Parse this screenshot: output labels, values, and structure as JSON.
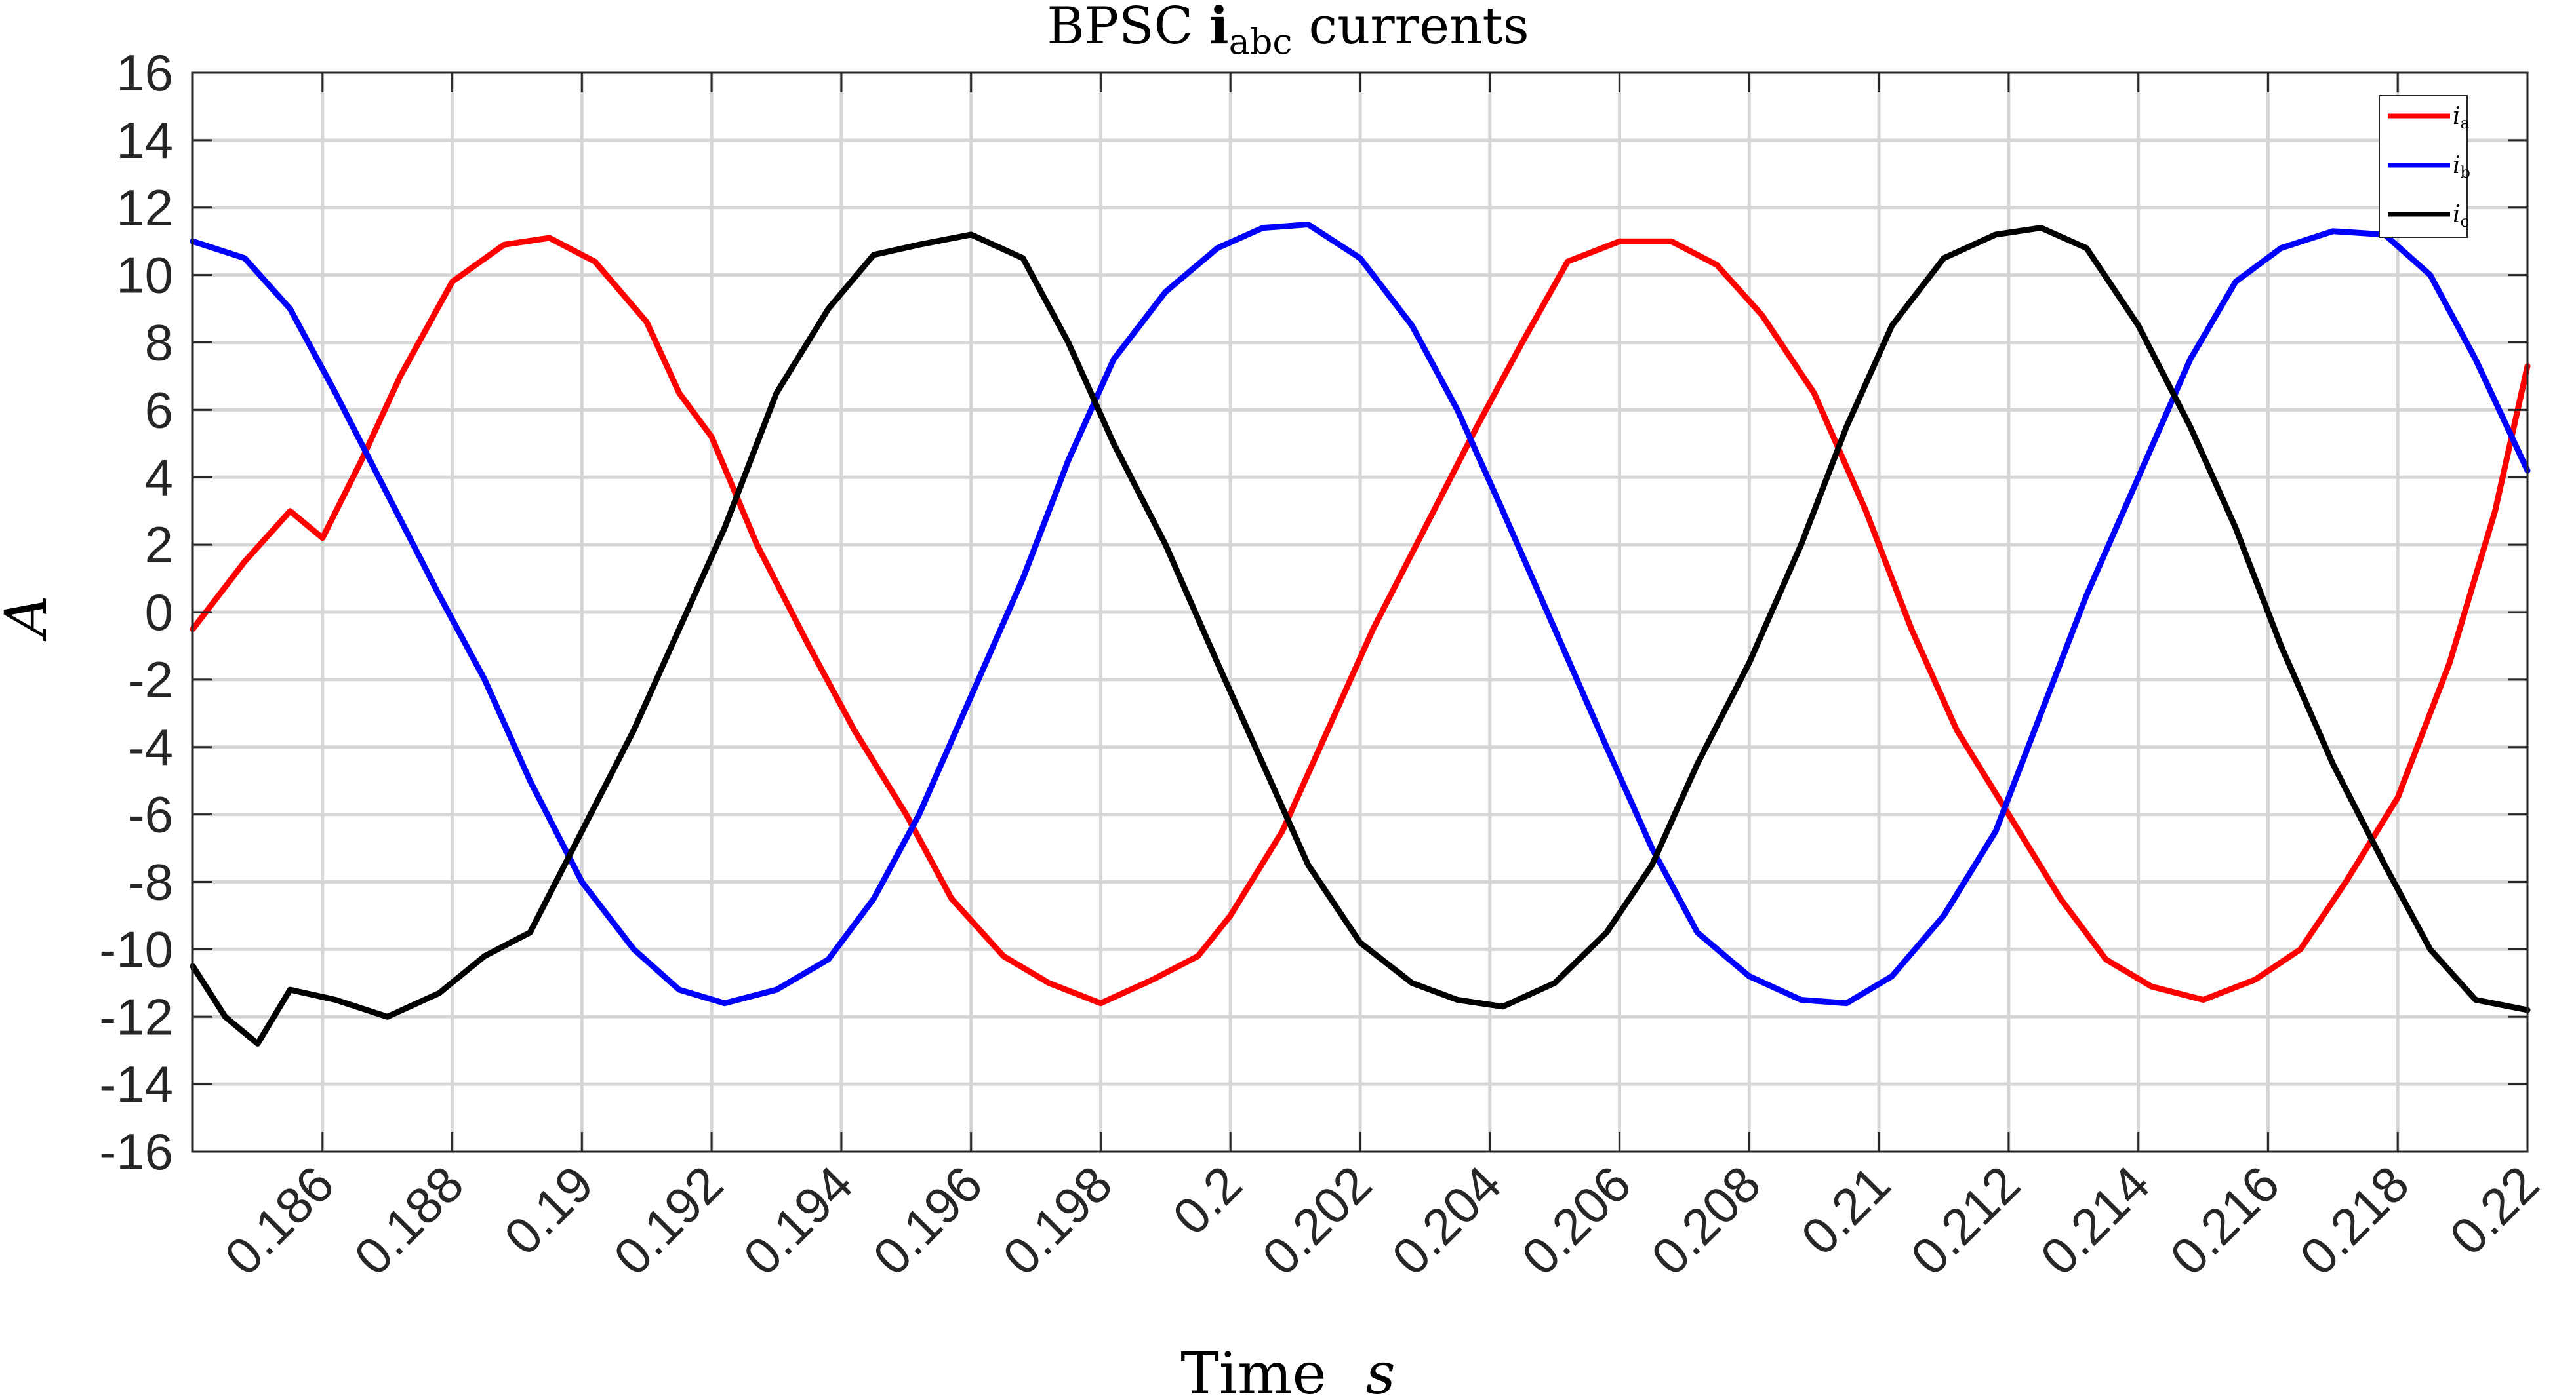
{
  "chart_data": {
    "type": "line",
    "title": "BPSC i_abc currents",
    "title_parts": {
      "prefix": "BPSC ",
      "bold": "i",
      "subscript": "abc",
      "suffix": " currents"
    },
    "xlabel": "Time  s",
    "xlabel_parts": {
      "text": "Time",
      "unit": "s"
    },
    "ylabel": "A",
    "xlim": [
      0.184,
      0.22
    ],
    "ylim": [
      -16,
      16
    ],
    "x_ticks": [
      0.186,
      0.188,
      0.19,
      0.192,
      0.194,
      0.196,
      0.198,
      0.2,
      0.202,
      0.204,
      0.206,
      0.208,
      0.21,
      0.212,
      0.214,
      0.216,
      0.218,
      0.22
    ],
    "x_tick_labels": [
      "0.186",
      "0.188",
      "0.19",
      "0.192",
      "0.194",
      "0.196",
      "0.198",
      "0.2",
      "0.202",
      "0.204",
      "0.206",
      "0.208",
      "0.21",
      "0.212",
      "0.214",
      "0.216",
      "0.218",
      "0.22"
    ],
    "y_ticks": [
      16,
      14,
      12,
      10,
      8,
      6,
      4,
      2,
      0,
      -2,
      -4,
      -6,
      -8,
      -10,
      -12,
      -14,
      -16
    ],
    "y_tick_labels": [
      "16",
      "14",
      "12",
      "10",
      "8",
      "6",
      "4",
      "2",
      "0",
      "-2",
      "-4",
      "-6",
      "-8",
      "-10",
      "-12",
      "-14",
      "-16"
    ],
    "grid": true,
    "legend_position": "top-right",
    "series": [
      {
        "name": "i_a",
        "legend_main": "i",
        "legend_sub": "a",
        "color": "#ff0000",
        "x": [
          0.184,
          0.1848,
          0.1855,
          0.186,
          0.1866,
          0.1872,
          0.188,
          0.1888,
          0.1895,
          0.1902,
          0.191,
          0.1915,
          0.192,
          0.1927,
          0.1935,
          0.1942,
          0.195,
          0.1957,
          0.1965,
          0.1972,
          0.198,
          0.1988,
          0.1995,
          0.2,
          0.2008,
          0.2015,
          0.2022,
          0.203,
          0.2038,
          0.2045,
          0.2052,
          0.206,
          0.2068,
          0.2075,
          0.2082,
          0.209,
          0.2098,
          0.2105,
          0.2112,
          0.212,
          0.2128,
          0.2135,
          0.2142,
          0.215,
          0.2158,
          0.2165,
          0.2172,
          0.218,
          0.2188,
          0.2195,
          0.22
        ],
        "y": [
          -0.5,
          1.5,
          3.0,
          2.2,
          4.5,
          7.0,
          9.8,
          10.9,
          11.1,
          10.4,
          8.6,
          6.5,
          5.2,
          2.0,
          -1.0,
          -3.5,
          -6.0,
          -8.5,
          -10.2,
          -11.0,
          -11.6,
          -10.9,
          -10.2,
          -9.0,
          -6.5,
          -3.5,
          -0.5,
          2.5,
          5.5,
          8.0,
          10.4,
          11.0,
          11.0,
          10.3,
          8.8,
          6.5,
          3.0,
          -0.5,
          -3.5,
          -6.0,
          -8.5,
          -10.3,
          -11.1,
          -11.5,
          -10.9,
          -10.0,
          -8.0,
          -5.5,
          -1.5,
          3.0,
          7.3
        ]
      },
      {
        "name": "i_b",
        "legend_main": "i",
        "legend_sub": "b",
        "color": "#0000ff",
        "x": [
          0.184,
          0.1848,
          0.1855,
          0.1862,
          0.187,
          0.1878,
          0.1885,
          0.1892,
          0.19,
          0.1908,
          0.1915,
          0.1922,
          0.193,
          0.1938,
          0.1945,
          0.1952,
          0.196,
          0.1968,
          0.1975,
          0.1982,
          0.199,
          0.1998,
          0.2005,
          0.2012,
          0.202,
          0.2028,
          0.2035,
          0.2042,
          0.205,
          0.2058,
          0.2065,
          0.2072,
          0.208,
          0.2088,
          0.2095,
          0.2102,
          0.211,
          0.2118,
          0.2125,
          0.2132,
          0.214,
          0.2148,
          0.2155,
          0.2162,
          0.217,
          0.2178,
          0.2185,
          0.2192,
          0.22
        ],
        "y": [
          11.0,
          10.5,
          9.0,
          6.5,
          3.5,
          0.5,
          -2.0,
          -5.0,
          -8.0,
          -10.0,
          -11.2,
          -11.6,
          -11.2,
          -10.3,
          -8.5,
          -6.0,
          -2.5,
          1.0,
          4.5,
          7.5,
          9.5,
          10.8,
          11.4,
          11.5,
          10.5,
          8.5,
          6.0,
          3.0,
          -0.5,
          -4.0,
          -7.0,
          -9.5,
          -10.8,
          -11.5,
          -11.6,
          -10.8,
          -9.0,
          -6.5,
          -3.0,
          0.5,
          4.0,
          7.5,
          9.8,
          10.8,
          11.3,
          11.2,
          10.0,
          7.5,
          4.2
        ]
      },
      {
        "name": "i_c",
        "legend_main": "i",
        "legend_sub": "c",
        "color": "#000000",
        "x": [
          0.184,
          0.1845,
          0.185,
          0.1855,
          0.1862,
          0.187,
          0.1878,
          0.1885,
          0.1892,
          0.19,
          0.1908,
          0.1915,
          0.1922,
          0.193,
          0.1938,
          0.1945,
          0.1952,
          0.196,
          0.1968,
          0.1975,
          0.1982,
          0.199,
          0.1998,
          0.2005,
          0.2012,
          0.202,
          0.2028,
          0.2035,
          0.2042,
          0.205,
          0.2058,
          0.2065,
          0.2072,
          0.208,
          0.2088,
          0.2095,
          0.2102,
          0.211,
          0.2118,
          0.2125,
          0.2132,
          0.214,
          0.2148,
          0.2155,
          0.2162,
          0.217,
          0.2178,
          0.2185,
          0.2192,
          0.22
        ],
        "y": [
          -10.5,
          -12.0,
          -12.8,
          -11.2,
          -11.5,
          -12.0,
          -11.3,
          -10.2,
          -9.5,
          -6.5,
          -3.5,
          -0.5,
          2.5,
          6.5,
          9.0,
          10.6,
          10.9,
          11.2,
          10.5,
          8.0,
          5.0,
          2.0,
          -1.5,
          -4.5,
          -7.5,
          -9.8,
          -11.0,
          -11.5,
          -11.7,
          -11.0,
          -9.5,
          -7.5,
          -4.5,
          -1.5,
          2.0,
          5.5,
          8.5,
          10.5,
          11.2,
          11.4,
          10.8,
          8.5,
          5.5,
          2.5,
          -1.0,
          -4.5,
          -7.5,
          -10.0,
          -11.5,
          -11.8
        ]
      }
    ]
  }
}
